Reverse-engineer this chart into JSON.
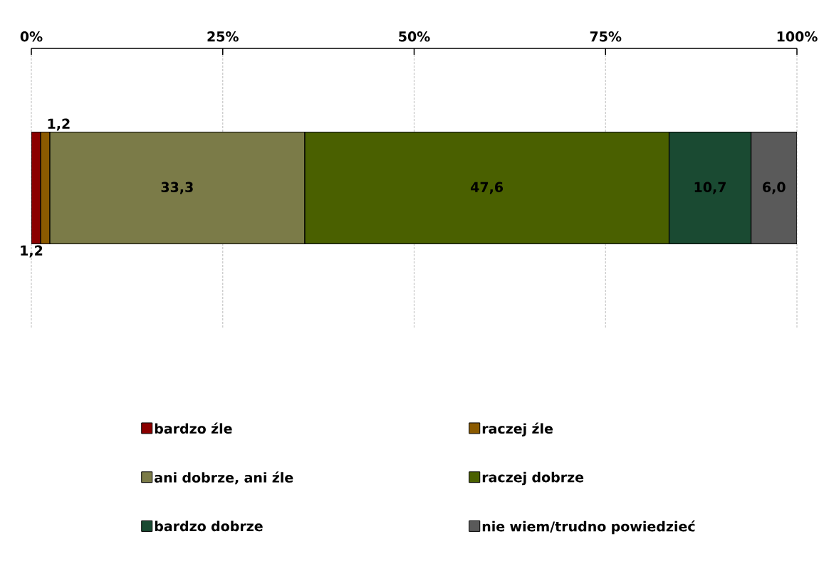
{
  "chart_data": {
    "type": "bar",
    "orientation": "horizontal",
    "stacked": true,
    "categories": [
      null
    ],
    "xlim": [
      0,
      100
    ],
    "xticks": [
      {
        "value": 0,
        "label": "0%"
      },
      {
        "value": 25,
        "label": "25%"
      },
      {
        "value": 50,
        "label": "50%"
      },
      {
        "value": 75,
        "label": "75%"
      },
      {
        "value": 100,
        "label": "100%"
      }
    ],
    "grid": "x",
    "legend": "bottom",
    "series": [
      {
        "name": "bardzo źle",
        "color": "#8b0000",
        "values": [
          1.2
        ],
        "value_labels": [
          "1,2"
        ]
      },
      {
        "name": "raczej źle",
        "color": "#8b5a00",
        "values": [
          1.2
        ],
        "value_labels": [
          "1,2"
        ]
      },
      {
        "name": "ani dobrze, ani źle",
        "color": "#7b7b48",
        "values": [
          33.3
        ],
        "value_labels": [
          "33,3"
        ]
      },
      {
        "name": "raczej dobrze",
        "color": "#4a6000",
        "values": [
          47.6
        ],
        "value_labels": [
          "47,6"
        ]
      },
      {
        "name": "bardzo dobrze",
        "color": "#1a4a32",
        "values": [
          10.7
        ],
        "value_labels": [
          "10,7"
        ]
      },
      {
        "name": "nie wiem/trudno powiedzieć",
        "color": "#5a5a5a",
        "values": [
          6.0
        ],
        "value_labels": [
          "6,0"
        ]
      }
    ]
  }
}
